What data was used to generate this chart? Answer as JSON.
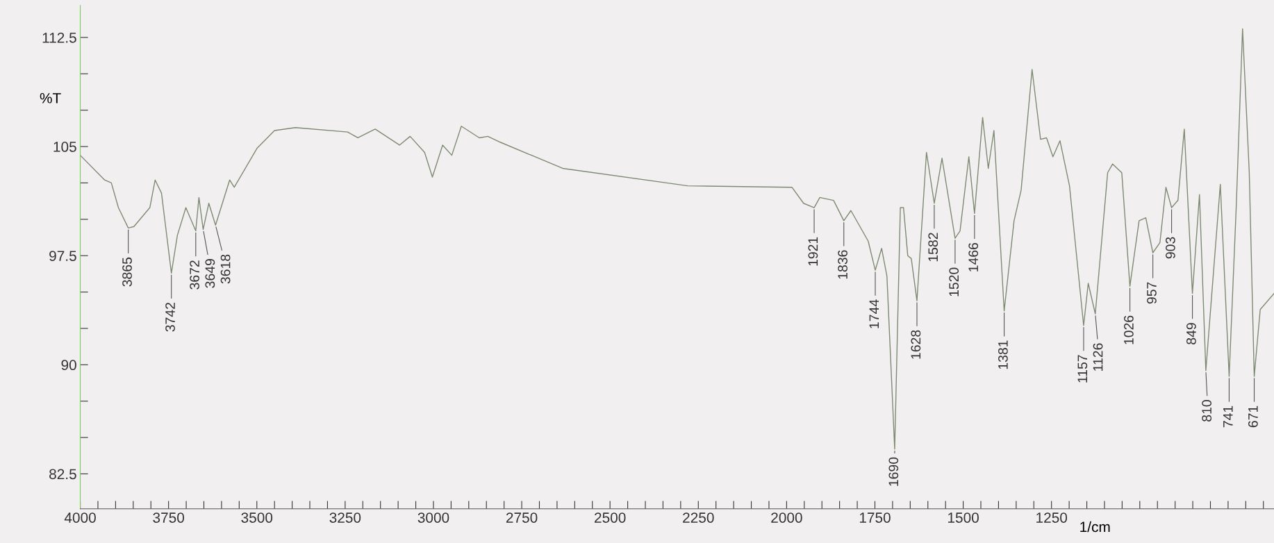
{
  "chart_data": {
    "type": "line",
    "xlabel": "1/cm",
    "ylabel": "%T",
    "xlim": [
      4000,
      620
    ],
    "ylim": [
      80.1,
      114.7
    ],
    "xticks": [
      4000,
      {
        "value": 3950,
        "label": null
      },
      {
        "value": 3900,
        "label": null
      },
      {
        "value": 3850,
        "label": null
      },
      {
        "value": 3800,
        "label": null
      },
      3750,
      {
        "value": 3700,
        "label": null
      },
      {
        "value": 3650,
        "label": null
      },
      {
        "value": 3600,
        "label": null
      },
      {
        "value": 3550,
        "label": null
      },
      3500,
      {
        "value": 3450,
        "label": null
      },
      {
        "value": 3400,
        "label": null
      },
      {
        "value": 3350,
        "label": null
      },
      {
        "value": 3300,
        "label": null
      },
      3250,
      {
        "value": 3200,
        "label": null
      },
      {
        "value": 3150,
        "label": null
      },
      {
        "value": 3100,
        "label": null
      },
      {
        "value": 3050,
        "label": null
      },
      3000,
      {
        "value": 2950,
        "label": null
      },
      {
        "value": 2900,
        "label": null
      },
      {
        "value": 2850,
        "label": null
      },
      {
        "value": 2800,
        "label": null
      },
      2750,
      {
        "value": 2700,
        "label": null
      },
      {
        "value": 2650,
        "label": null
      },
      {
        "value": 2600,
        "label": null
      },
      {
        "value": 2550,
        "label": null
      },
      2500,
      {
        "value": 2450,
        "label": null
      },
      {
        "value": 2400,
        "label": null
      },
      {
        "value": 2350,
        "label": null
      },
      {
        "value": 2300,
        "label": null
      },
      2250,
      {
        "value": 2200,
        "label": null
      },
      {
        "value": 2150,
        "label": null
      },
      {
        "value": 2100,
        "label": null
      },
      {
        "value": 2050,
        "label": null
      },
      2000,
      {
        "value": 1950,
        "label": null
      },
      {
        "value": 1900,
        "label": null
      },
      {
        "value": 1850,
        "label": null
      },
      {
        "value": 1800,
        "label": null
      },
      1750,
      {
        "value": 1700,
        "label": null
      },
      {
        "value": 1650,
        "label": null
      },
      {
        "value": 1600,
        "label": null
      },
      {
        "value": 1550,
        "label": null
      },
      1500,
      {
        "value": 1450,
        "label": null
      },
      {
        "value": 1400,
        "label": null
      },
      {
        "value": 1350,
        "label": null
      },
      {
        "value": 1300,
        "label": null
      },
      1250,
      {
        "value": 1200,
        "label": null
      },
      {
        "value": 1150,
        "label": null
      },
      {
        "value": 1100,
        "label": null
      },
      {
        "value": 1050,
        "label": null
      },
      {
        "value": 1000,
        "label": null
      },
      {
        "value": 950,
        "label": null
      },
      {
        "value": 900,
        "label": null
      },
      {
        "value": 850,
        "label": null
      },
      {
        "value": 800,
        "label": null
      },
      {
        "value": 750,
        "label": null
      },
      {
        "value": 700,
        "label": null
      },
      {
        "value": 650,
        "label": null
      }
    ],
    "yticks": [
      82.5,
      {
        "value": 85,
        "label": null
      },
      {
        "value": 87.5,
        "label": null
      },
      90,
      {
        "value": 92.5,
        "label": null
      },
      {
        "value": 95,
        "label": null
      },
      97.5,
      {
        "value": 100,
        "label": null
      },
      {
        "value": 102.5,
        "label": null
      },
      105,
      {
        "value": 107.5,
        "label": null
      },
      {
        "value": 110,
        "label": null
      },
      112.5
    ],
    "grid": false,
    "marker": "none",
    "line_style": "solid",
    "series": [
      {
        "color": "#7d8a72",
        "x": [
          4000,
          3931,
          3912,
          3892,
          3864,
          3848,
          3803,
          3788,
          3770,
          3742,
          3725,
          3701,
          3673,
          3664,
          3652,
          3636,
          3617,
          3577,
          3564,
          3499,
          3450,
          3391,
          3243,
          3214,
          3165,
          3096,
          3066,
          3025,
          3003,
          2974,
          2948,
          2921,
          2870,
          2846,
          2811,
          2634,
          2280,
          1985,
          1952,
          1922,
          1906,
          1867,
          1838,
          1818,
          1769,
          1749,
          1731,
          1716,
          1694,
          1678,
          1669,
          1657,
          1647,
          1631,
          1604,
          1582,
          1560,
          1523,
          1509,
          1484,
          1468,
          1445,
          1429,
          1413,
          1384,
          1356,
          1336,
          1305,
          1281,
          1264,
          1246,
          1226,
          1199,
          1159,
          1146,
          1126,
          1091,
          1077,
          1051,
          1028,
          1002,
          983,
          963,
          943,
          926,
          910,
          892,
          874,
          851,
          831,
          813,
          772,
          747,
          727,
          709,
          690,
          676,
          659,
          620
        ],
        "values": [
          104.4,
          102.7,
          102.5,
          100.8,
          99.4,
          99.5,
          100.8,
          102.7,
          101.8,
          96.3,
          98.9,
          100.8,
          99.2,
          101.5,
          99.3,
          101.1,
          99.6,
          102.7,
          102.2,
          104.9,
          106.1,
          106.3,
          106.0,
          105.6,
          106.2,
          105.1,
          105.7,
          104.6,
          102.9,
          105.1,
          104.4,
          106.4,
          105.6,
          105.7,
          105.3,
          103.5,
          102.3,
          102.2,
          101.1,
          100.8,
          101.5,
          101.3,
          99.9,
          100.6,
          98.5,
          96.5,
          98.0,
          96.1,
          84.2,
          100.8,
          100.8,
          97.5,
          97.3,
          94.4,
          104.6,
          101.1,
          104.2,
          98.7,
          99.2,
          104.3,
          100.4,
          107.0,
          103.5,
          106.1,
          93.7,
          99.9,
          102.0,
          110.3,
          105.5,
          105.6,
          104.3,
          105.4,
          102.3,
          92.7,
          95.6,
          93.5,
          103.2,
          103.8,
          103.2,
          95.4,
          99.9,
          100.1,
          97.7,
          98.4,
          102.2,
          100.8,
          101.3,
          106.2,
          94.9,
          101.7,
          89.6,
          102.4,
          89.2,
          100.8,
          113.1,
          103.2,
          89.2,
          93.8,
          94.9
        ]
      }
    ],
    "annotations": [
      {
        "text": "3865",
        "x": 3864,
        "y": 99.4
      },
      {
        "text": "3742",
        "x": 3742,
        "y": 96.3
      },
      {
        "text": "3672",
        "x": 3673,
        "y": 99.2
      },
      {
        "text": "3649",
        "x": 3652,
        "y": 99.3
      },
      {
        "text": "3618",
        "x": 3617,
        "y": 99.6
      },
      {
        "text": "1921",
        "x": 1922,
        "y": 100.8
      },
      {
        "text": "1836",
        "x": 1838,
        "y": 99.9
      },
      {
        "text": "1744",
        "x": 1749,
        "y": 96.5
      },
      {
        "text": "1690",
        "x": 1694,
        "y": 84.2
      },
      {
        "text": "1628",
        "x": 1631,
        "y": 94.4
      },
      {
        "text": "1582",
        "x": 1582,
        "y": 101.1
      },
      {
        "text": "1520",
        "x": 1523,
        "y": 98.7
      },
      {
        "text": "1466",
        "x": 1468,
        "y": 100.4
      },
      {
        "text": "1381",
        "x": 1384,
        "y": 93.7
      },
      {
        "text": "1157",
        "x": 1159,
        "y": 92.7
      },
      {
        "text": "1126",
        "x": 1126,
        "y": 93.5
      },
      {
        "text": "1026",
        "x": 1028,
        "y": 95.4
      },
      {
        "text": "957",
        "x": 963,
        "y": 97.7
      },
      {
        "text": "903",
        "x": 910,
        "y": 100.8
      },
      {
        "text": "849",
        "x": 851,
        "y": 94.9
      },
      {
        "text": "810",
        "x": 813,
        "y": 89.6
      },
      {
        "text": "741",
        "x": 747,
        "y": 89.2
      },
      {
        "text": "671",
        "x": 676,
        "y": 89.2
      }
    ]
  }
}
